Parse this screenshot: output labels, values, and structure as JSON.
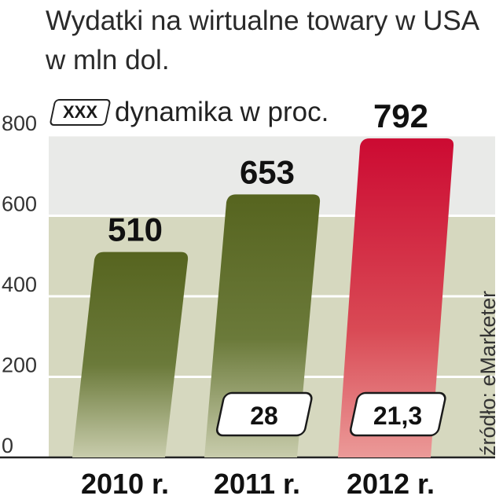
{
  "chart_data": {
    "type": "bar",
    "title_lines": [
      "Wydatki na wirtualne towary w USA",
      "w mln dol."
    ],
    "legend": {
      "box_label": "XXX",
      "text": "dynamika w proc."
    },
    "source": "źródło: eMarketer",
    "categories": [
      "2010 r.",
      "2011 r.",
      "2012 r."
    ],
    "values": [
      510,
      653,
      792
    ],
    "value_labels": [
      "510",
      "653",
      "792"
    ],
    "dynamics": [
      null,
      "28",
      "21,3"
    ],
    "ylim": [
      0,
      800
    ],
    "yticks": [
      0,
      200,
      400,
      600,
      800
    ],
    "colors": {
      "bar_default": "#5a6a28",
      "bar_highlight": "#d42a3c",
      "band_light": "#e9eae8",
      "band_olive": "#d6d8bf"
    }
  }
}
